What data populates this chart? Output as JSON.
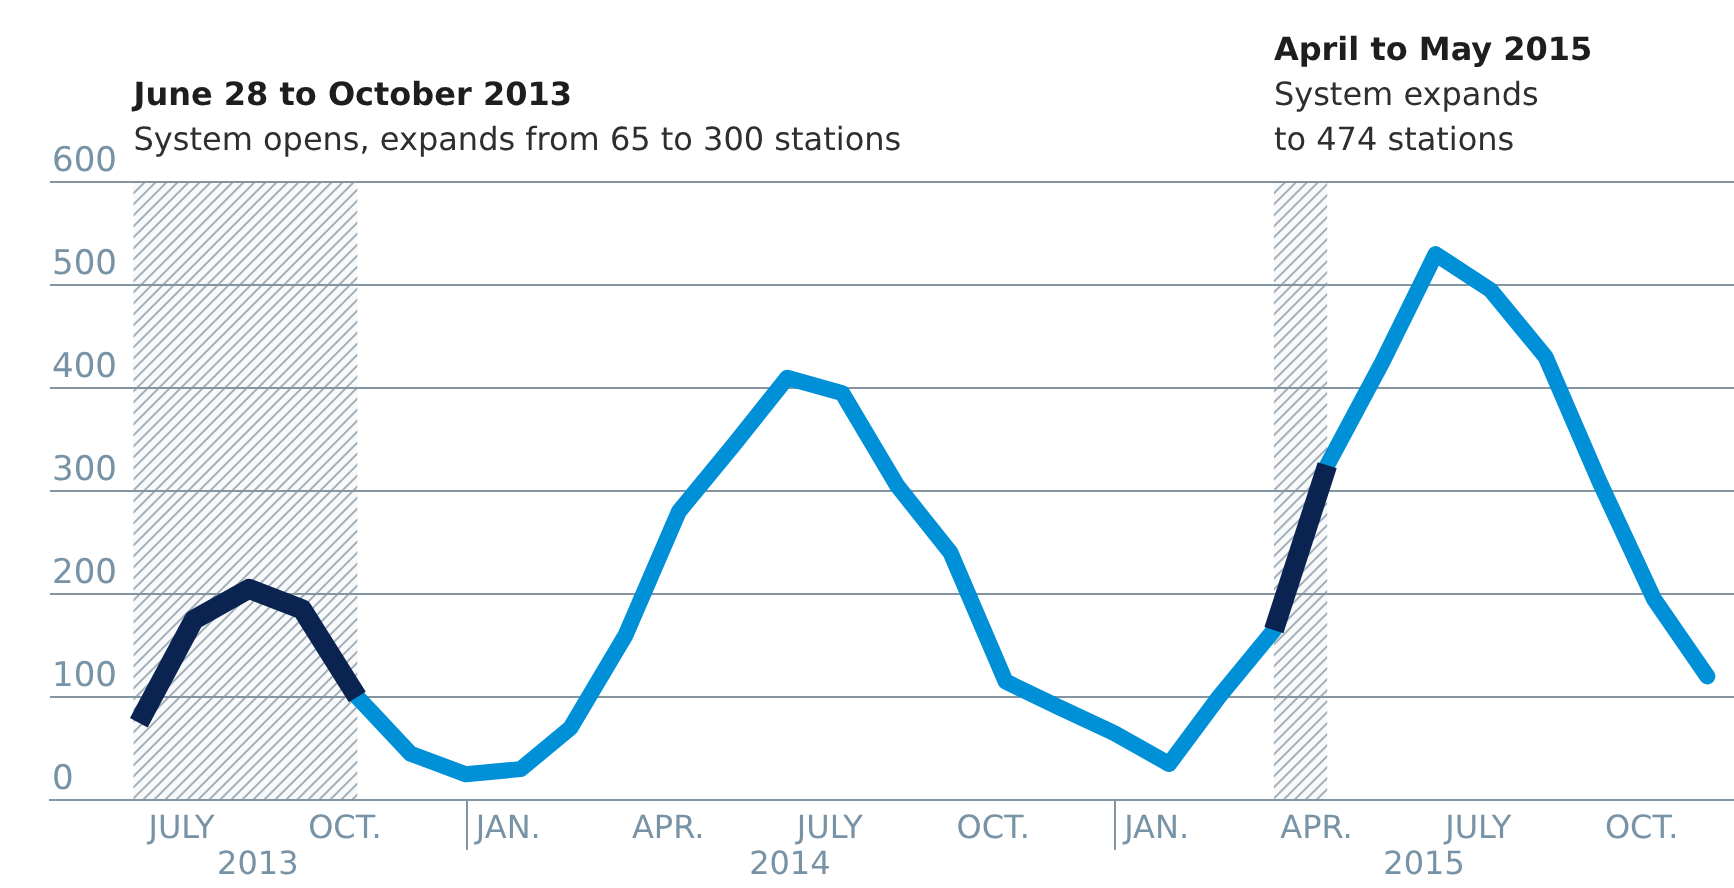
{
  "chart_data": {
    "type": "line",
    "x": [
      "2013-07",
      "2013-08",
      "2013-09",
      "2013-10",
      "2013-11",
      "2013-12",
      "2014-01",
      "2014-02",
      "2014-03",
      "2014-04",
      "2014-05",
      "2014-06",
      "2014-07",
      "2014-08",
      "2014-09",
      "2014-10",
      "2014-11",
      "2014-12",
      "2015-01",
      "2015-02",
      "2015-03",
      "2015-04",
      "2015-05",
      "2015-06",
      "2015-07",
      "2015-08",
      "2015-09",
      "2015-10",
      "2015-11",
      "2015-12"
    ],
    "series": [
      {
        "color": "#0090d8",
        "values": [
          null,
          null,
          null,
          null,
          100,
          45,
          25,
          30,
          70,
          160,
          280,
          345,
          410,
          395,
          305,
          240,
          115,
          90,
          65,
          35,
          100,
          165,
          325,
          425,
          530,
          495,
          430,
          310,
          195,
          120
        ]
      },
      {
        "color": "#0a2350",
        "values": [
          75,
          175,
          205,
          185,
          100,
          null,
          null,
          null,
          null,
          null,
          null,
          null,
          null,
          null,
          null,
          null,
          null,
          null,
          null,
          null,
          null,
          165,
          325,
          null,
          null,
          null,
          null,
          null,
          null,
          null
        ]
      }
    ],
    "xlim": [
      "2013-05-12",
      "2015-12-16"
    ],
    "xticks": [
      {
        "value": "2013-07-25",
        "label": "JULY"
      },
      {
        "value": "2013-10-25",
        "label": "OCT."
      },
      {
        "value": "2014-01-25",
        "label": "JAN."
      },
      {
        "value": "2014-04-25",
        "label": "APR."
      },
      {
        "value": "2014-07-25",
        "label": "JULY"
      },
      {
        "value": "2014-10-25",
        "label": "OCT."
      },
      {
        "value": "2015-01-25",
        "label": "JAN."
      },
      {
        "value": "2015-04-25",
        "label": "APR."
      },
      {
        "value": "2015-07-25",
        "label": "JULY"
      },
      {
        "value": "2015-10-25",
        "label": "OCT."
      }
    ],
    "ylim": [
      0,
      600
    ],
    "yticks": [
      0,
      100,
      200,
      300,
      400,
      500,
      600
    ],
    "grid": "y",
    "marker": "none",
    "line_style": "solid",
    "bands": [
      {
        "axis": "x",
        "from": "2013-06-28",
        "to": "2013-11-01",
        "label": "June 28 to October 2013\nSystem opens, expands from 65 to 300 stations",
        "color": "#a3afb9"
      },
      {
        "axis": "x",
        "from": "2015-04-01",
        "to": "2015-05-01",
        "label": "April to May 2015\nSystem expands\nto 474 stations",
        "color": "#a3afb9"
      }
    ],
    "annotations": [
      "2013",
      "2014",
      "2015"
    ]
  }
}
